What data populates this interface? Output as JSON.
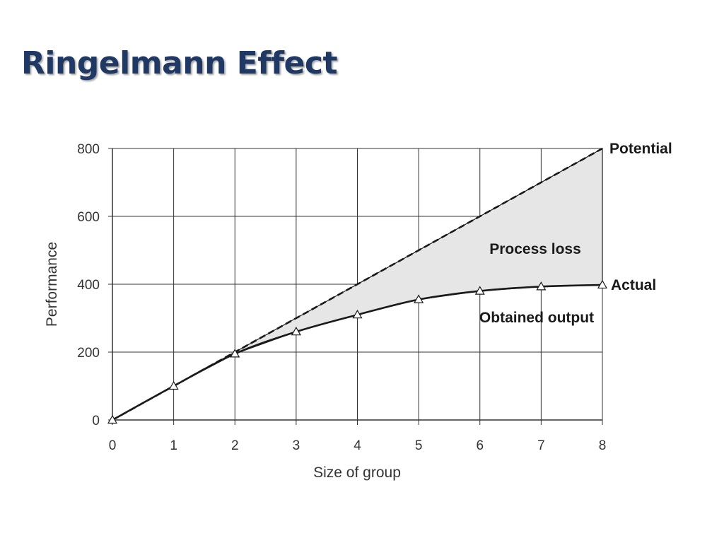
{
  "slide": {
    "title": "Ringelmann Effect",
    "title_color": "#1f3864"
  },
  "chart_data": {
    "type": "line",
    "title": "",
    "xlabel": "Size of group",
    "ylabel": "Performance",
    "xlim": [
      0,
      8
    ],
    "ylim": [
      0,
      800
    ],
    "x_ticks": [
      0,
      1,
      2,
      3,
      4,
      5,
      6,
      7,
      8
    ],
    "y_ticks": [
      0,
      200,
      400,
      600,
      800
    ],
    "grid": true,
    "series": [
      {
        "name": "Potential",
        "style": "dashed",
        "x": [
          0,
          1,
          2,
          3,
          4,
          5,
          6,
          7,
          8
        ],
        "y": [
          0,
          100,
          200,
          300,
          400,
          500,
          600,
          700,
          800
        ]
      },
      {
        "name": "Actual",
        "style": "solid",
        "marker": "triangle",
        "x": [
          0,
          1,
          2,
          3,
          4,
          5,
          6,
          7,
          8
        ],
        "y": [
          0,
          100,
          195,
          260,
          310,
          355,
          380,
          393,
          398
        ]
      }
    ],
    "annotations": {
      "gap": "Process loss",
      "below_actual": "Obtained output"
    },
    "colors": {
      "line": "#1a1a1a",
      "grid": "#333333",
      "fill": "#e6e6e6",
      "marker_fill": "#ffffff"
    }
  }
}
